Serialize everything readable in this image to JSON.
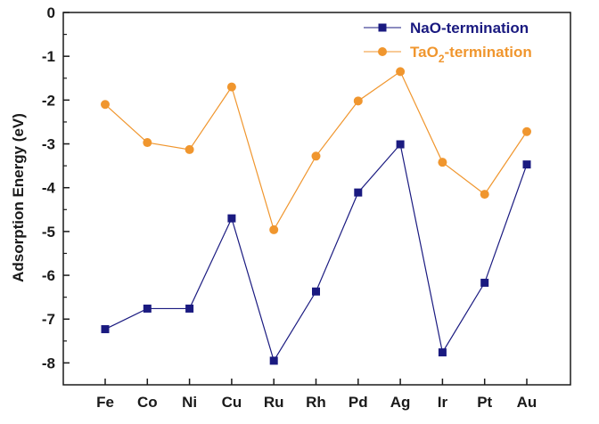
{
  "chart_data": {
    "type": "line",
    "title": "",
    "xlabel": "",
    "ylabel": "Adsorption Energy (eV)",
    "categories": [
      "Fe",
      "Co",
      "Ni",
      "Cu",
      "Ru",
      "Rh",
      "Pd",
      "Ag",
      "Ir",
      "Pt",
      "Au"
    ],
    "ylim": [
      -8.5,
      0
    ],
    "yticks": [
      0,
      -1,
      -2,
      -3,
      -4,
      -5,
      -6,
      -7,
      -8
    ],
    "ytick_labels": [
      "0",
      "-1",
      "-2",
      "-3",
      "-4",
      "-5",
      "-6",
      "-7",
      "-8"
    ],
    "grid": false,
    "legend_position": "top-right",
    "series": [
      {
        "name": "NaO-termination",
        "marker": "square",
        "color": "#1a1a80",
        "values": [
          -7.23,
          -6.76,
          -6.76,
          -4.7,
          -7.95,
          -6.37,
          -4.11,
          -3.01,
          -7.76,
          -6.17,
          -3.47
        ]
      },
      {
        "name": "TaO2-termination",
        "name_parts": [
          "TaO",
          "2",
          "-termination"
        ],
        "marker": "circle",
        "color": "#f0962e",
        "values": [
          -2.1,
          -2.97,
          -3.13,
          -1.7,
          -4.96,
          -3.28,
          -2.02,
          -1.35,
          -3.42,
          -4.15,
          -2.72
        ]
      }
    ]
  }
}
